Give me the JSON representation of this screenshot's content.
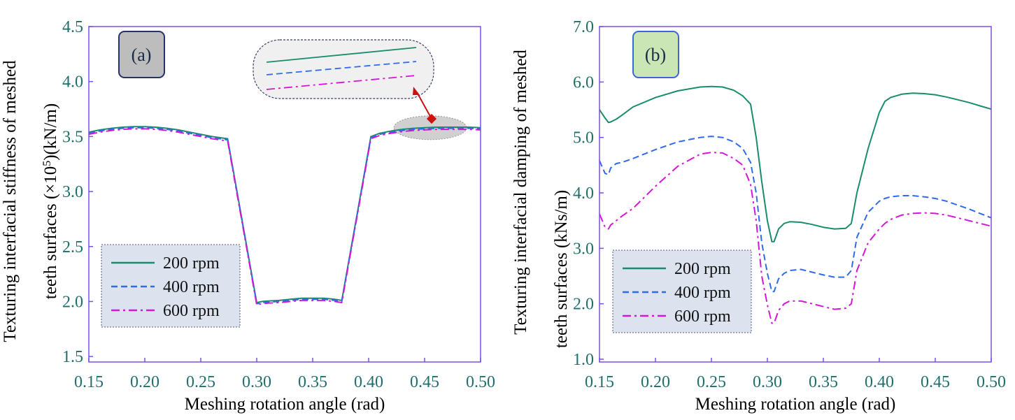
{
  "colors": {
    "axis": "#7b4fe0",
    "tick_text": "#1f6f6a",
    "label_text": "#111111",
    "series_200": "#1a8c6e",
    "series_400": "#2f6bea",
    "series_600": "#d417d4",
    "legend_bg": "#dde3ee",
    "panel_a_badge_bg": "#bdbdbd",
    "panel_a_badge_border": "#26336b",
    "panel_b_badge_bg": "#c9e6b4",
    "panel_b_badge_border": "#3d67d8",
    "arrow": "#cc1111",
    "zoom_ellipse": "#d0d0d0",
    "zoom_box_bg": "#f0f0f0"
  },
  "chart_data": [
    {
      "type": "line",
      "panel_label": "(a)",
      "xlabel": "Meshing rotation angle (rad)",
      "ylabel_line1": "Texturing interfacial stiffness of meshed",
      "ylabel_line2_pre": "teeth surfaces (×10",
      "ylabel_line2_sup": "5",
      "ylabel_line2_post": ")(kN/m)",
      "xlim": [
        0.15,
        0.5
      ],
      "ylim": [
        1.45,
        4.5
      ],
      "xticks": [
        0.15,
        0.2,
        0.25,
        0.3,
        0.35,
        0.4,
        0.45,
        0.5
      ],
      "xtick_labels": [
        "0.15",
        "0.20",
        "0.25",
        "0.30",
        "0.35",
        "0.40",
        "0.45",
        "0.50"
      ],
      "yticks": [
        1.5,
        2.0,
        2.5,
        3.0,
        3.5,
        4.0,
        4.5
      ],
      "ytick_labels": [
        "1.5",
        "2.0",
        "2.5",
        "3.0",
        "3.5",
        "4.0",
        "4.5"
      ],
      "legend_position": "bottom-left",
      "has_zoom_inset": true,
      "series": [
        {
          "name": "200 rpm",
          "style": "solid",
          "x": [
            0.15,
            0.16,
            0.17,
            0.18,
            0.19,
            0.2,
            0.21,
            0.22,
            0.23,
            0.24,
            0.25,
            0.26,
            0.274,
            0.3,
            0.305,
            0.31,
            0.32,
            0.33,
            0.34,
            0.35,
            0.36,
            0.37,
            0.376,
            0.402,
            0.41,
            0.42,
            0.43,
            0.44,
            0.45,
            0.46,
            0.47,
            0.48,
            0.49,
            0.5
          ],
          "y": [
            3.54,
            3.56,
            3.575,
            3.585,
            3.59,
            3.59,
            3.585,
            3.575,
            3.56,
            3.54,
            3.52,
            3.5,
            3.48,
            1.99,
            2.0,
            2.005,
            2.01,
            2.02,
            2.03,
            2.03,
            2.03,
            2.02,
            2.01,
            3.5,
            3.53,
            3.55,
            3.565,
            3.575,
            3.58,
            3.585,
            3.585,
            3.585,
            3.585,
            3.58
          ]
        },
        {
          "name": "400 rpm",
          "style": "dashed",
          "x": [
            0.15,
            0.16,
            0.17,
            0.18,
            0.19,
            0.2,
            0.21,
            0.22,
            0.23,
            0.24,
            0.25,
            0.26,
            0.274,
            0.3,
            0.305,
            0.31,
            0.32,
            0.33,
            0.34,
            0.35,
            0.36,
            0.37,
            0.376,
            0.402,
            0.41,
            0.42,
            0.43,
            0.44,
            0.45,
            0.46,
            0.47,
            0.48,
            0.49,
            0.5
          ],
          "y": [
            3.53,
            3.55,
            3.565,
            3.575,
            3.58,
            3.58,
            3.575,
            3.565,
            3.55,
            3.53,
            3.51,
            3.49,
            3.47,
            1.98,
            1.99,
            1.995,
            2.0,
            2.01,
            2.02,
            2.02,
            2.02,
            2.01,
            2.0,
            3.49,
            3.52,
            3.54,
            3.555,
            3.565,
            3.57,
            3.575,
            3.575,
            3.575,
            3.575,
            3.57
          ]
        },
        {
          "name": "600 rpm",
          "style": "dashdot",
          "x": [
            0.15,
            0.16,
            0.17,
            0.18,
            0.19,
            0.2,
            0.21,
            0.22,
            0.23,
            0.24,
            0.25,
            0.26,
            0.274,
            0.3,
            0.305,
            0.31,
            0.32,
            0.33,
            0.34,
            0.35,
            0.36,
            0.37,
            0.376,
            0.402,
            0.41,
            0.42,
            0.43,
            0.44,
            0.45,
            0.46,
            0.47,
            0.48,
            0.49,
            0.5
          ],
          "y": [
            3.52,
            3.54,
            3.555,
            3.565,
            3.57,
            3.57,
            3.565,
            3.555,
            3.54,
            3.52,
            3.5,
            3.48,
            3.46,
            1.97,
            1.98,
            1.985,
            1.99,
            2.0,
            2.01,
            2.01,
            2.01,
            2.0,
            1.99,
            3.48,
            3.51,
            3.53,
            3.545,
            3.555,
            3.56,
            3.565,
            3.565,
            3.565,
            3.565,
            3.56
          ]
        }
      ]
    },
    {
      "type": "line",
      "panel_label": "(b)",
      "xlabel": "Meshing rotation angle (rad)",
      "ylabel_line1": "Texturing interfacial damping of meshed",
      "ylabel_line2": "teeth surfaces (kNs/m)",
      "xlim": [
        0.15,
        0.5
      ],
      "ylim": [
        0.95,
        7.0
      ],
      "xticks": [
        0.15,
        0.2,
        0.25,
        0.3,
        0.35,
        0.4,
        0.45,
        0.5
      ],
      "xtick_labels": [
        "0.15",
        "0.20",
        "0.25",
        "0.30",
        "0.35",
        "0.40",
        "0.45",
        "0.50"
      ],
      "yticks": [
        1,
        2,
        3,
        4,
        5,
        6,
        7
      ],
      "ytick_labels": [
        "1.0",
        "2.0",
        "3.0",
        "4.0",
        "5.0",
        "6.0",
        "7.0"
      ],
      "legend_position": "bottom-left",
      "series": [
        {
          "name": "200 rpm",
          "style": "solid",
          "x": [
            0.15,
            0.155,
            0.158,
            0.16,
            0.165,
            0.17,
            0.18,
            0.2,
            0.22,
            0.24,
            0.25,
            0.26,
            0.27,
            0.278,
            0.285,
            0.29,
            0.295,
            0.3,
            0.304,
            0.306,
            0.31,
            0.315,
            0.32,
            0.33,
            0.34,
            0.35,
            0.36,
            0.37,
            0.375,
            0.38,
            0.39,
            0.4,
            0.405,
            0.41,
            0.42,
            0.43,
            0.44,
            0.45,
            0.46,
            0.47,
            0.48,
            0.49,
            0.5
          ],
          "y": [
            5.5,
            5.35,
            5.27,
            5.28,
            5.33,
            5.4,
            5.55,
            5.72,
            5.84,
            5.91,
            5.92,
            5.91,
            5.85,
            5.75,
            5.6,
            5.0,
            4.2,
            3.5,
            3.12,
            3.12,
            3.35,
            3.45,
            3.48,
            3.47,
            3.43,
            3.38,
            3.35,
            3.36,
            3.45,
            4.0,
            4.8,
            5.45,
            5.65,
            5.72,
            5.78,
            5.8,
            5.79,
            5.77,
            5.73,
            5.68,
            5.63,
            5.57,
            5.51
          ]
        },
        {
          "name": "400 rpm",
          "style": "dashed",
          "x": [
            0.15,
            0.155,
            0.158,
            0.16,
            0.165,
            0.17,
            0.18,
            0.2,
            0.22,
            0.24,
            0.25,
            0.26,
            0.27,
            0.278,
            0.285,
            0.29,
            0.295,
            0.3,
            0.304,
            0.306,
            0.31,
            0.315,
            0.32,
            0.33,
            0.34,
            0.35,
            0.36,
            0.37,
            0.375,
            0.38,
            0.39,
            0.4,
            0.405,
            0.41,
            0.42,
            0.43,
            0.44,
            0.45,
            0.46,
            0.47,
            0.48,
            0.49,
            0.5
          ],
          "y": [
            4.58,
            4.35,
            4.33,
            4.45,
            4.53,
            4.55,
            4.62,
            4.78,
            4.92,
            5.0,
            5.02,
            5.0,
            4.92,
            4.8,
            4.55,
            4.0,
            3.1,
            2.55,
            2.22,
            2.22,
            2.45,
            2.55,
            2.6,
            2.62,
            2.57,
            2.52,
            2.48,
            2.48,
            2.6,
            3.2,
            3.65,
            3.85,
            3.9,
            3.93,
            3.95,
            3.95,
            3.93,
            3.9,
            3.85,
            3.78,
            3.71,
            3.63,
            3.55
          ]
        },
        {
          "name": "600 rpm",
          "style": "dashdot",
          "x": [
            0.15,
            0.155,
            0.158,
            0.16,
            0.165,
            0.17,
            0.18,
            0.2,
            0.22,
            0.24,
            0.25,
            0.26,
            0.27,
            0.278,
            0.285,
            0.29,
            0.295,
            0.3,
            0.304,
            0.306,
            0.31,
            0.315,
            0.32,
            0.33,
            0.34,
            0.35,
            0.36,
            0.37,
            0.375,
            0.38,
            0.39,
            0.4,
            0.405,
            0.41,
            0.42,
            0.43,
            0.44,
            0.45,
            0.46,
            0.47,
            0.48,
            0.49,
            0.5
          ],
          "y": [
            3.62,
            3.38,
            3.35,
            3.42,
            3.5,
            3.58,
            3.72,
            4.12,
            4.48,
            4.7,
            4.73,
            4.72,
            4.62,
            4.5,
            4.15,
            3.5,
            2.5,
            1.98,
            1.65,
            1.65,
            1.88,
            2.0,
            2.05,
            2.05,
            2.0,
            1.95,
            1.9,
            1.92,
            2.0,
            2.6,
            3.1,
            3.35,
            3.45,
            3.52,
            3.6,
            3.63,
            3.64,
            3.63,
            3.6,
            3.55,
            3.5,
            3.45,
            3.4
          ]
        }
      ]
    }
  ]
}
